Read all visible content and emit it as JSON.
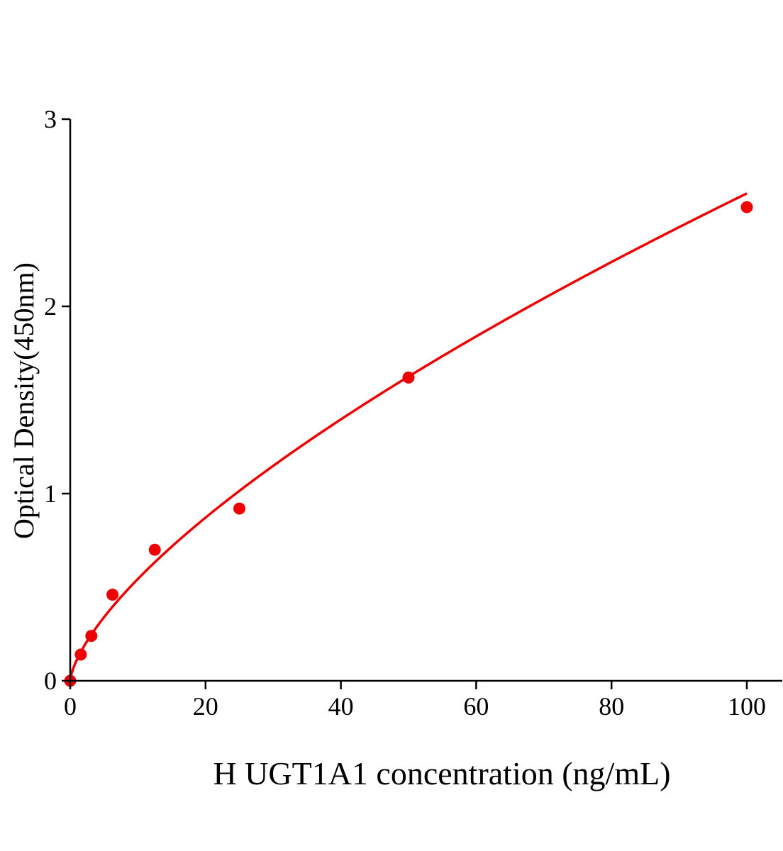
{
  "chart_data": {
    "type": "scatter",
    "title": "",
    "xlabel": "H UGT1A1 concentration (ng/mL)",
    "ylabel": "Optical Density(450nm)",
    "xlim": [
      0,
      105
    ],
    "ylim": [
      0,
      3
    ],
    "xticks": [
      0,
      20,
      40,
      60,
      80,
      100
    ],
    "yticks": [
      0,
      1,
      2,
      3
    ],
    "xtick_labels": [
      "0",
      "20",
      "40",
      "60",
      "80",
      "100"
    ],
    "ytick_labels": [
      "0",
      "1",
      "2",
      "3"
    ],
    "grid": false,
    "legend": "none",
    "series": [
      {
        "x": [
          0,
          1.5625,
          3.125,
          6.25,
          12.5,
          25,
          50,
          100
        ],
        "y": [
          0,
          0.14,
          0.24,
          0.46,
          0.7,
          0.92,
          1.62,
          2.53
        ],
        "color": "#ee0000",
        "fit": "power curve"
      }
    ]
  }
}
